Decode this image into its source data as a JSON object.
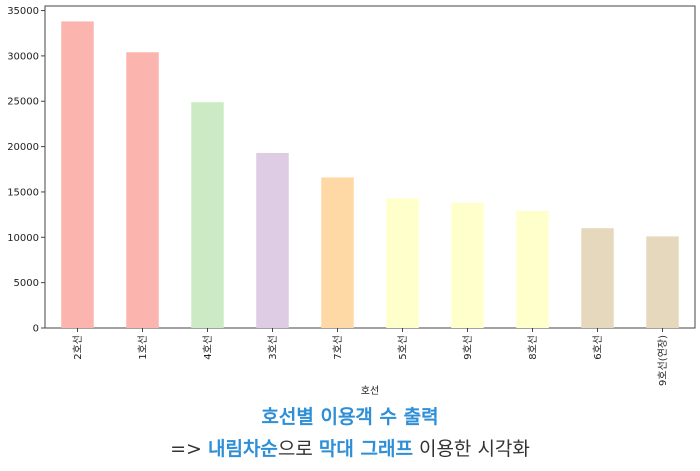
{
  "chart_data": {
    "type": "bar",
    "xlabel": "호선",
    "categories": [
      "2호선",
      "1호선",
      "4호선",
      "3호선",
      "7호선",
      "5호선",
      "9호선",
      "8호선",
      "6호선",
      "9호선(연장)"
    ],
    "values": [
      33800,
      30400,
      24900,
      19300,
      16600,
      14300,
      13800,
      12900,
      11000,
      10100
    ],
    "colors": [
      "#fbb4ae",
      "#fbb4ae",
      "#ccebc5",
      "#decbe4",
      "#fed9a6",
      "#ffffcc",
      "#ffffcc",
      "#ffffcc",
      "#e5d8bd",
      "#e5d8bd"
    ],
    "ylim": [
      0,
      35500
    ],
    "yticks": [
      0,
      5000,
      10000,
      15000,
      20000,
      25000,
      30000,
      35000
    ],
    "grid": false,
    "legend": false
  },
  "caption": {
    "title": "호선별 이용객 수 출력",
    "line2_prefix": "=> ",
    "line2_hl1": "내림차순",
    "line2_mid": "으로 ",
    "line2_hl2": "막대 그래프",
    "line2_suffix": " 이용한 시각화"
  }
}
